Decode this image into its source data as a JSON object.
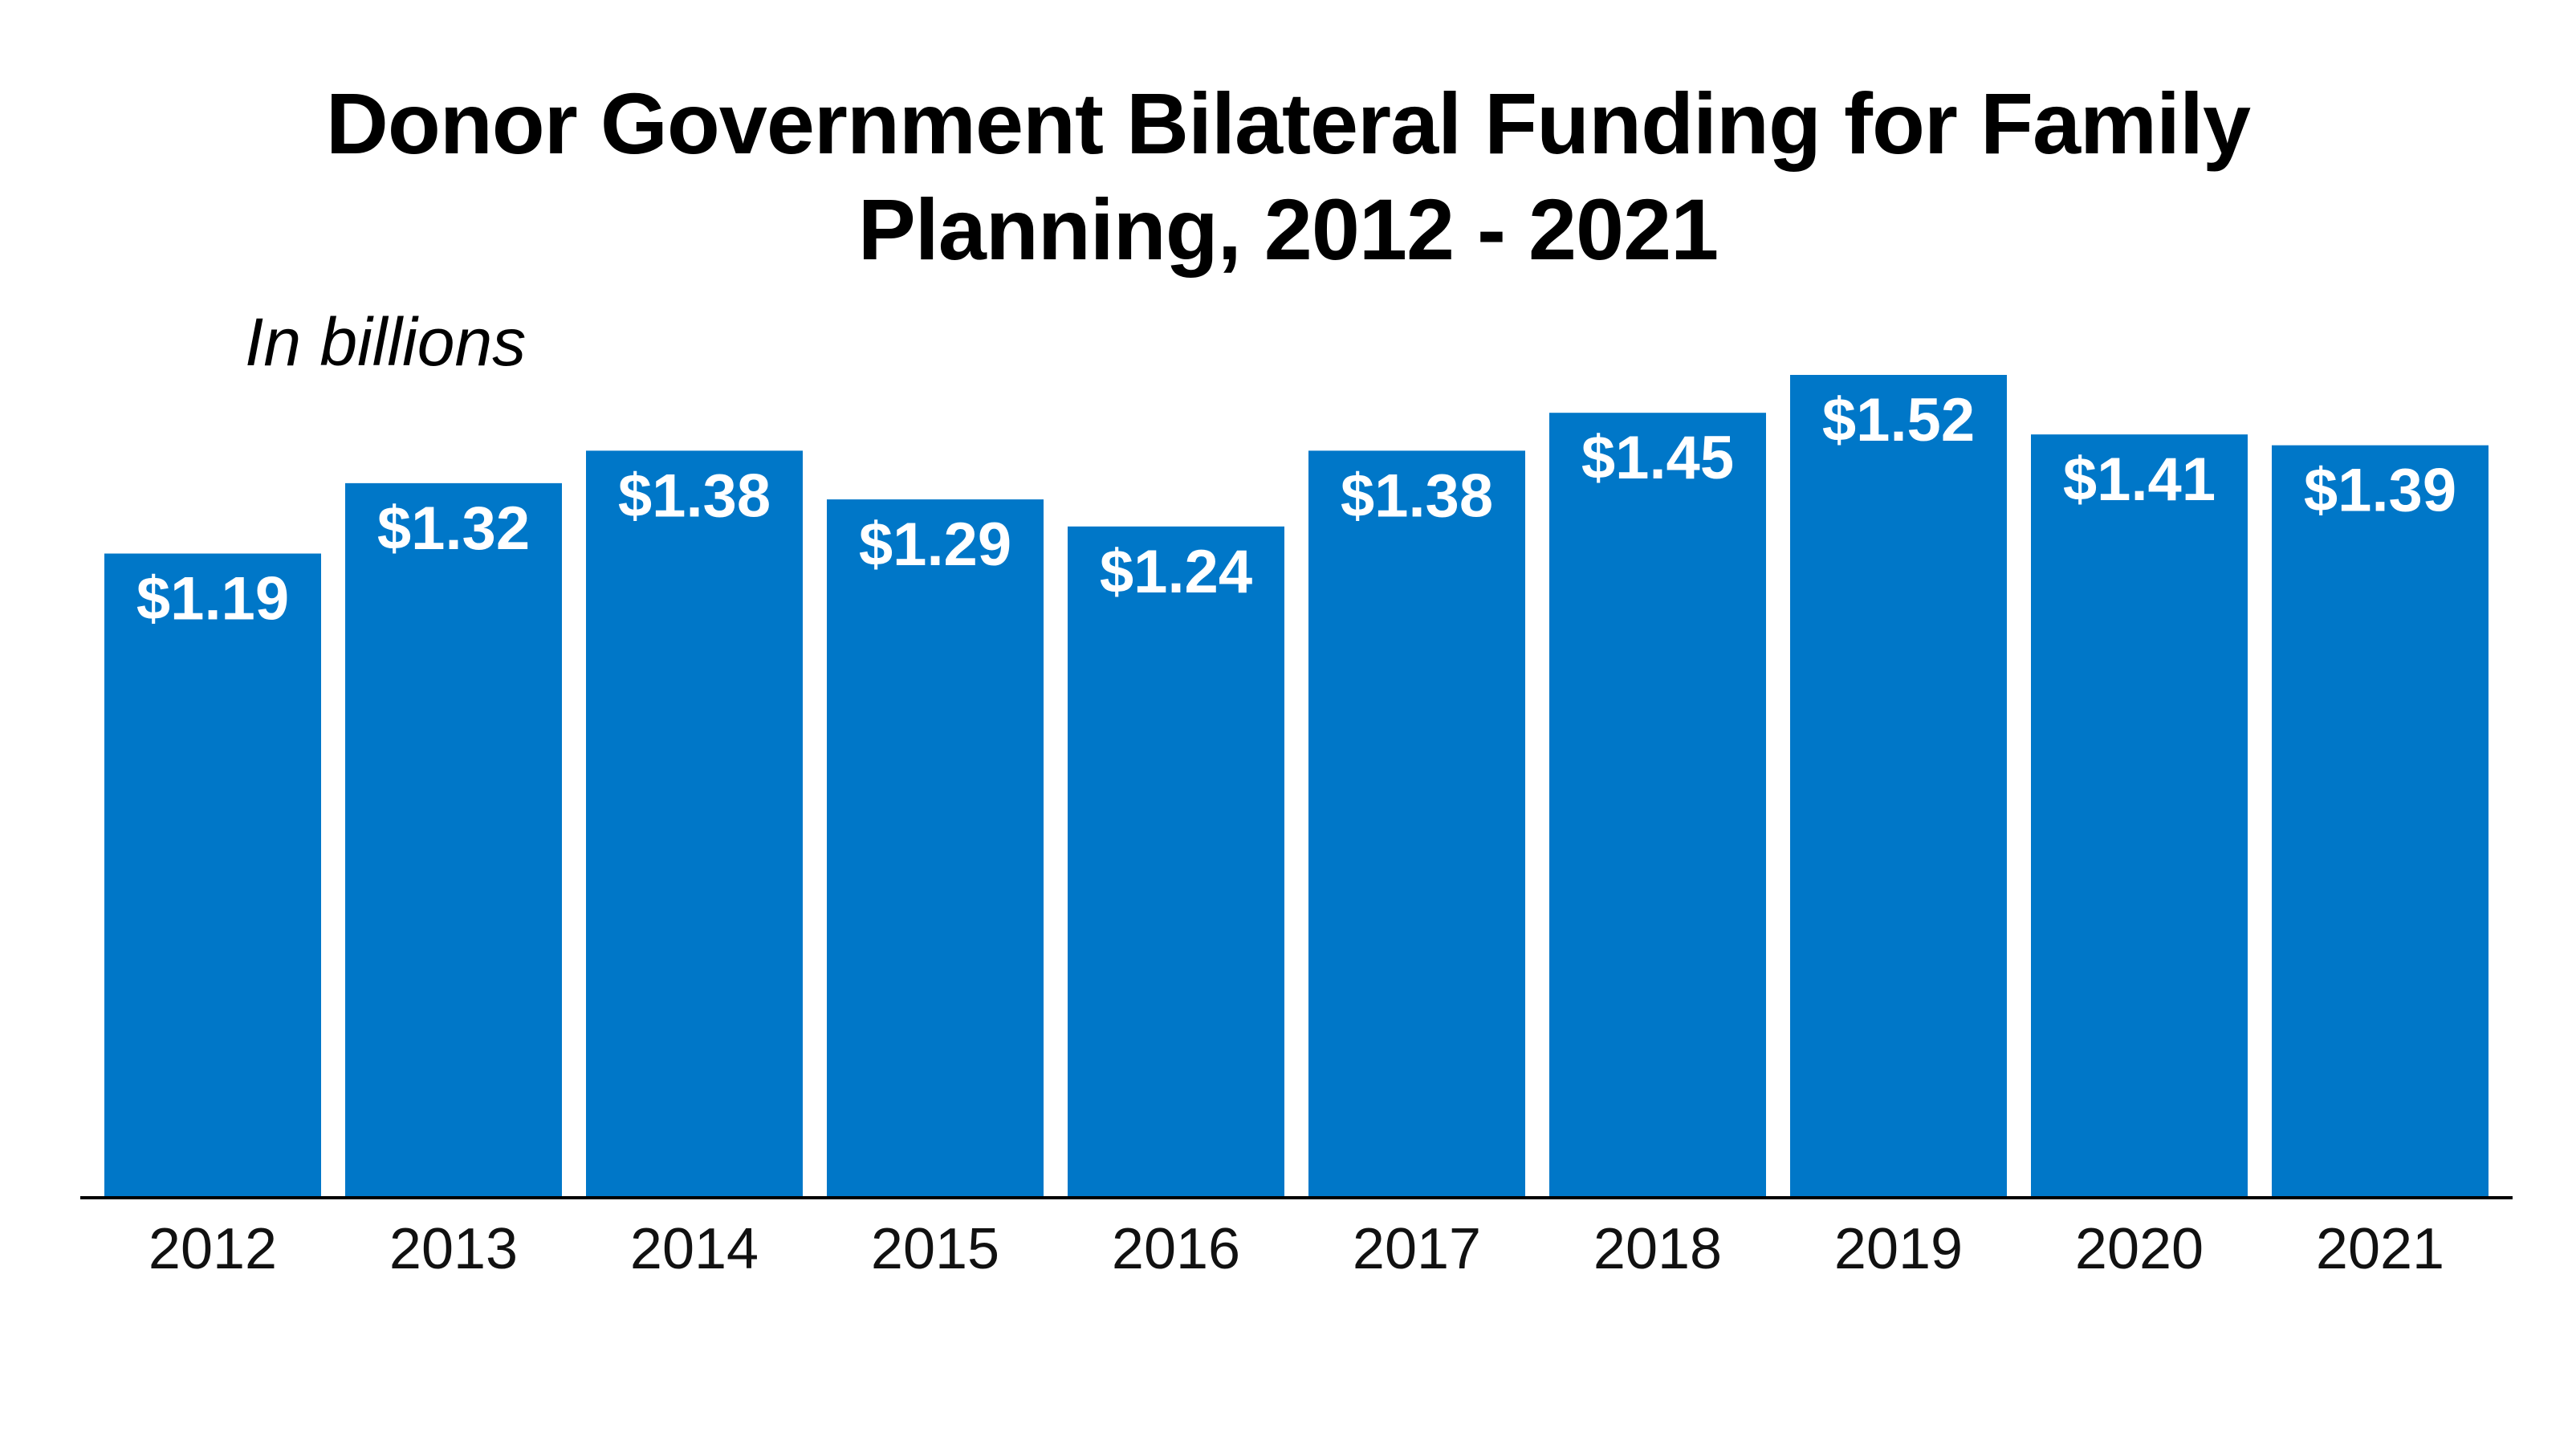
{
  "chart_data": {
    "type": "bar",
    "title_line1": "Donor Government Bilateral Funding for Family",
    "title_line2": "Planning, 2012 - 2021",
    "subtitle": "In billions",
    "categories": [
      "2012",
      "2013",
      "2014",
      "2015",
      "2016",
      "2017",
      "2018",
      "2019",
      "2020",
      "2021"
    ],
    "values": [
      1.19,
      1.32,
      1.38,
      1.29,
      1.24,
      1.38,
      1.45,
      1.52,
      1.41,
      1.39
    ],
    "value_labels": [
      "$1.19",
      "$1.32",
      "$1.38",
      "$1.29",
      "$1.24",
      "$1.38",
      "$1.45",
      "$1.52",
      "$1.41",
      "$1.39"
    ],
    "xlabel": "",
    "ylabel": "",
    "ylim": [
      0,
      1.52
    ],
    "grid": false,
    "legend": "none",
    "bar_color": "#0077C8",
    "axis_color": "#000000"
  }
}
